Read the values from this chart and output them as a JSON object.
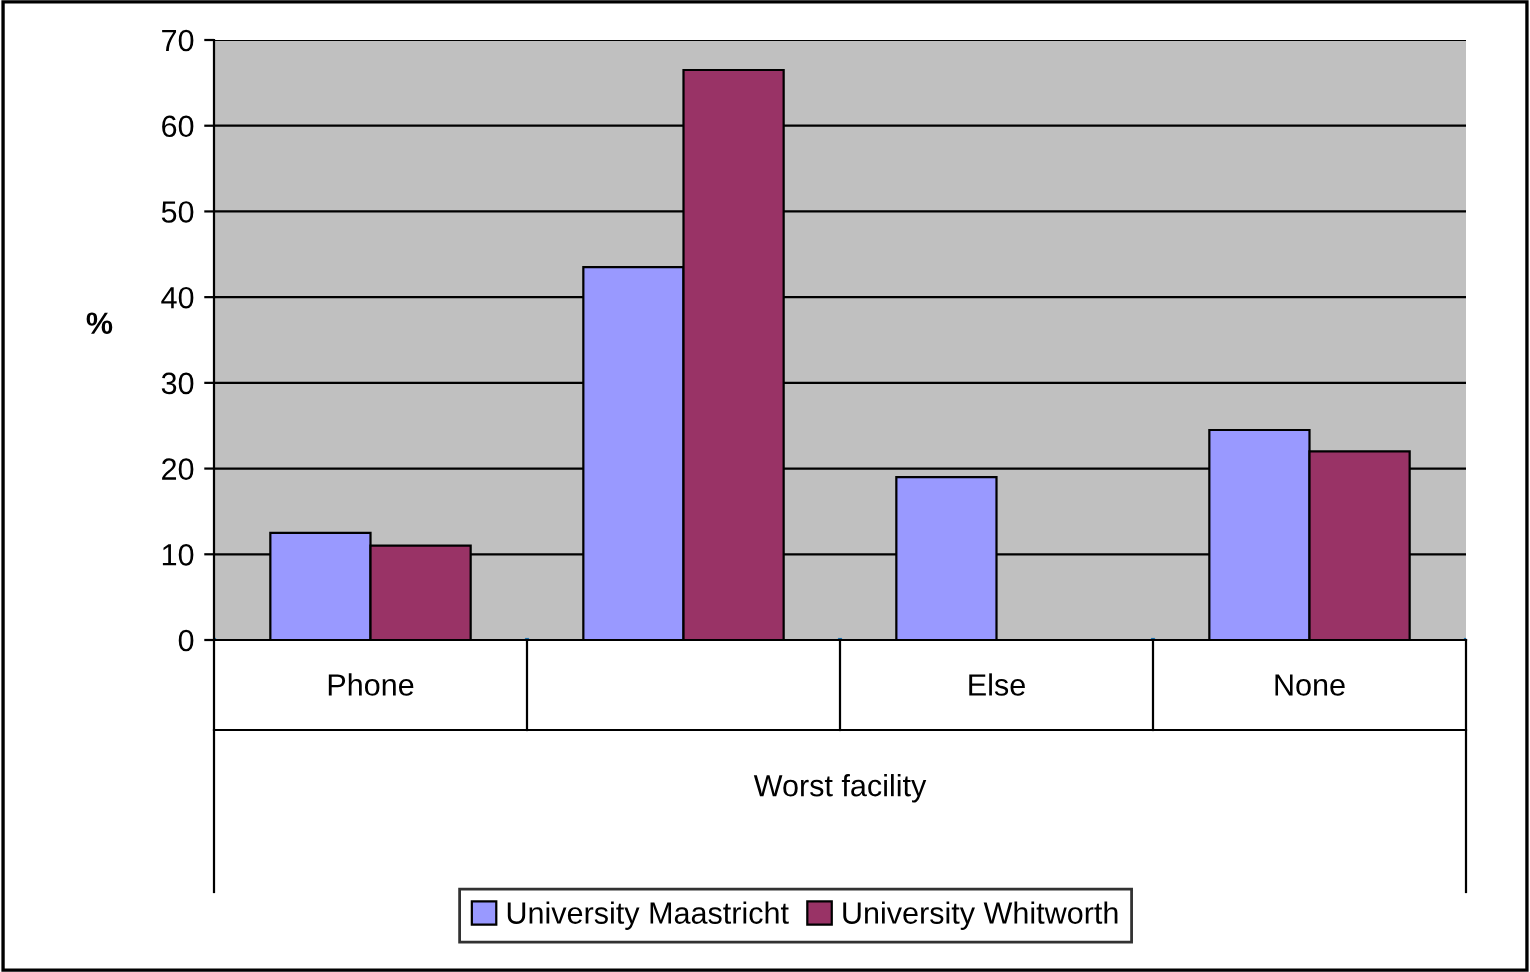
{
  "chart_data": {
    "type": "bar",
    "ylabel": "%",
    "xlabel": "Worst facility",
    "categories": [
      "Phone",
      null,
      "Else",
      "None"
    ],
    "series": [
      {
        "name": "University Maastricht",
        "color": "#9999ff",
        "values": [
          12.5,
          43.5,
          19,
          24.5
        ]
      },
      {
        "name": "University Whitworth",
        "color": "#993366",
        "values": [
          11,
          66.5,
          null,
          22
        ]
      }
    ],
    "ylim": [
      0,
      70
    ],
    "yticks": [
      0,
      10,
      20,
      30,
      40,
      50,
      60,
      70
    ],
    "grid": "y",
    "legend": "bottom"
  }
}
